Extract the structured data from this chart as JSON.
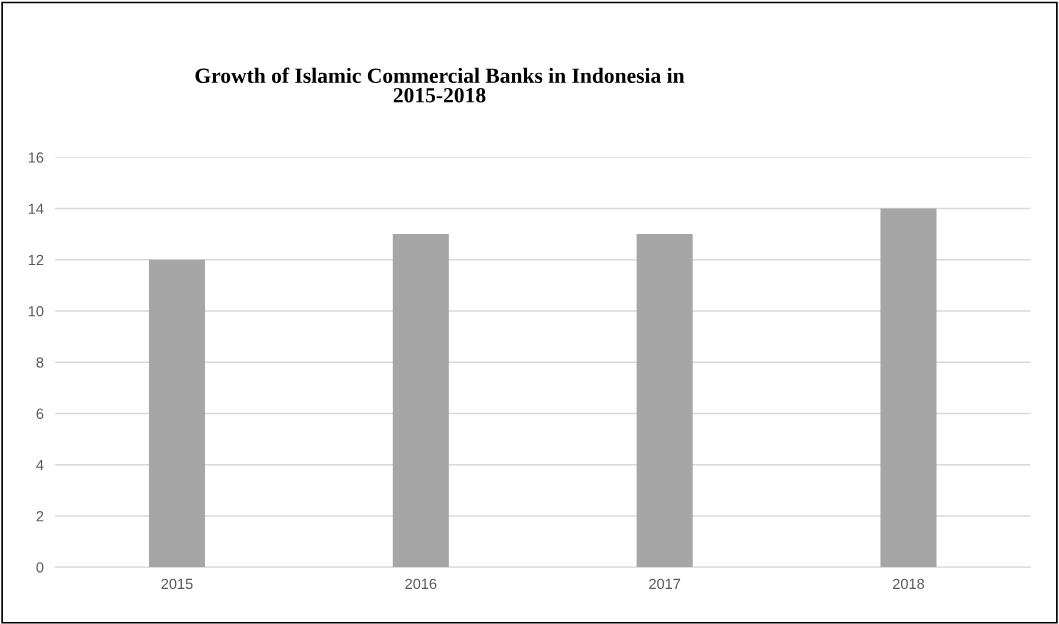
{
  "chart_data": {
    "type": "bar",
    "title": "Growth of Islamic Commercial Banks in Indonesia in\n2015-2018",
    "categories": [
      "2015",
      "2016",
      "2017",
      "2018"
    ],
    "values": [
      12,
      13,
      13,
      14
    ],
    "color": "#a6a6a6",
    "ylim": [
      0,
      16
    ],
    "yticks": [
      0,
      2,
      4,
      6,
      8,
      10,
      12,
      14,
      16
    ],
    "grid": "y",
    "legend": false
  }
}
